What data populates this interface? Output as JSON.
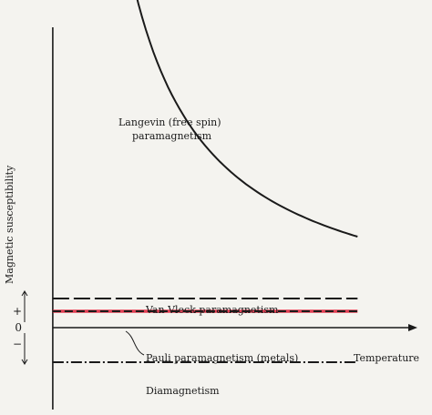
{
  "chart_data": {
    "type": "line",
    "title": "",
    "xlabel": "Temperature",
    "ylabel": "Magnetic susceptibility",
    "y_tick_labels": [
      "+",
      "0",
      "−"
    ],
    "grid": false,
    "legend": "none",
    "series": [
      {
        "name": "Langevin (free spin) paramagnetism",
        "kind": "curve C/T",
        "constant": 40,
        "t_range": [
          0.2,
          8.0
        ],
        "color": "#1a1a1a"
      },
      {
        "name": "Van Vleck paramagnetism",
        "kind": "constant",
        "value": 1.6,
        "t_range": [
          0.0,
          8.0
        ],
        "dash": "long-dash",
        "color": "#1a1a1a"
      },
      {
        "name": "Pauli paramagnetism (metals)",
        "kind": "constant",
        "value": 0.9,
        "t_range": [
          0.0,
          8.0
        ],
        "dash": "dash",
        "color": "#1a1a1a",
        "highlight_color": "#e0203a"
      },
      {
        "name": "Diamagnetism",
        "kind": "constant",
        "value": -1.9,
        "t_range": [
          0.0,
          8.0
        ],
        "dash": "dash-dot",
        "color": "#1a1a1a"
      }
    ],
    "xlim": [
      -0.5,
      9.5
    ],
    "ylim": [
      -3.0,
      17.0
    ]
  }
}
